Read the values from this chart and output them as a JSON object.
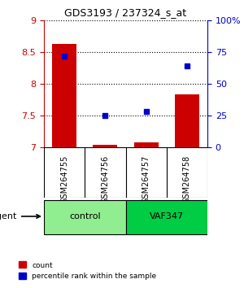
{
  "title": "GDS3193 / 237324_s_at",
  "samples": [
    "GSM264755",
    "GSM264756",
    "GSM264757",
    "GSM264758"
  ],
  "groups": [
    "control",
    "control",
    "VAF347",
    "VAF347"
  ],
  "group_labels": [
    "control",
    "VAF347"
  ],
  "group_colors": [
    "#90EE90",
    "#00CC00"
  ],
  "ylim": [
    7,
    9
  ],
  "yticks": [
    7,
    7.5,
    8,
    8.5,
    9
  ],
  "y2lim": [
    0,
    100
  ],
  "y2ticks": [
    0,
    25,
    50,
    75,
    100
  ],
  "y2ticklabels": [
    "0",
    "25",
    "50",
    "75",
    "100%"
  ],
  "red_values": [
    8.62,
    7.04,
    7.08,
    7.83
  ],
  "red_bottoms": [
    7.0,
    7.0,
    7.0,
    7.0
  ],
  "blue_values_pct": [
    72,
    25,
    28,
    64
  ],
  "bar_width": 0.6,
  "bar_color": "#CC0000",
  "dot_color": "#0000CC",
  "grid_color": "#000000",
  "bg_color": "#FFFFFF",
  "panel_bg": "#D3D3D3",
  "legend_red": "count",
  "legend_blue": "percentile rank within the sample",
  "xlabel_agent": "agent",
  "left_color": "#CC0000",
  "right_color": "#0000CC"
}
